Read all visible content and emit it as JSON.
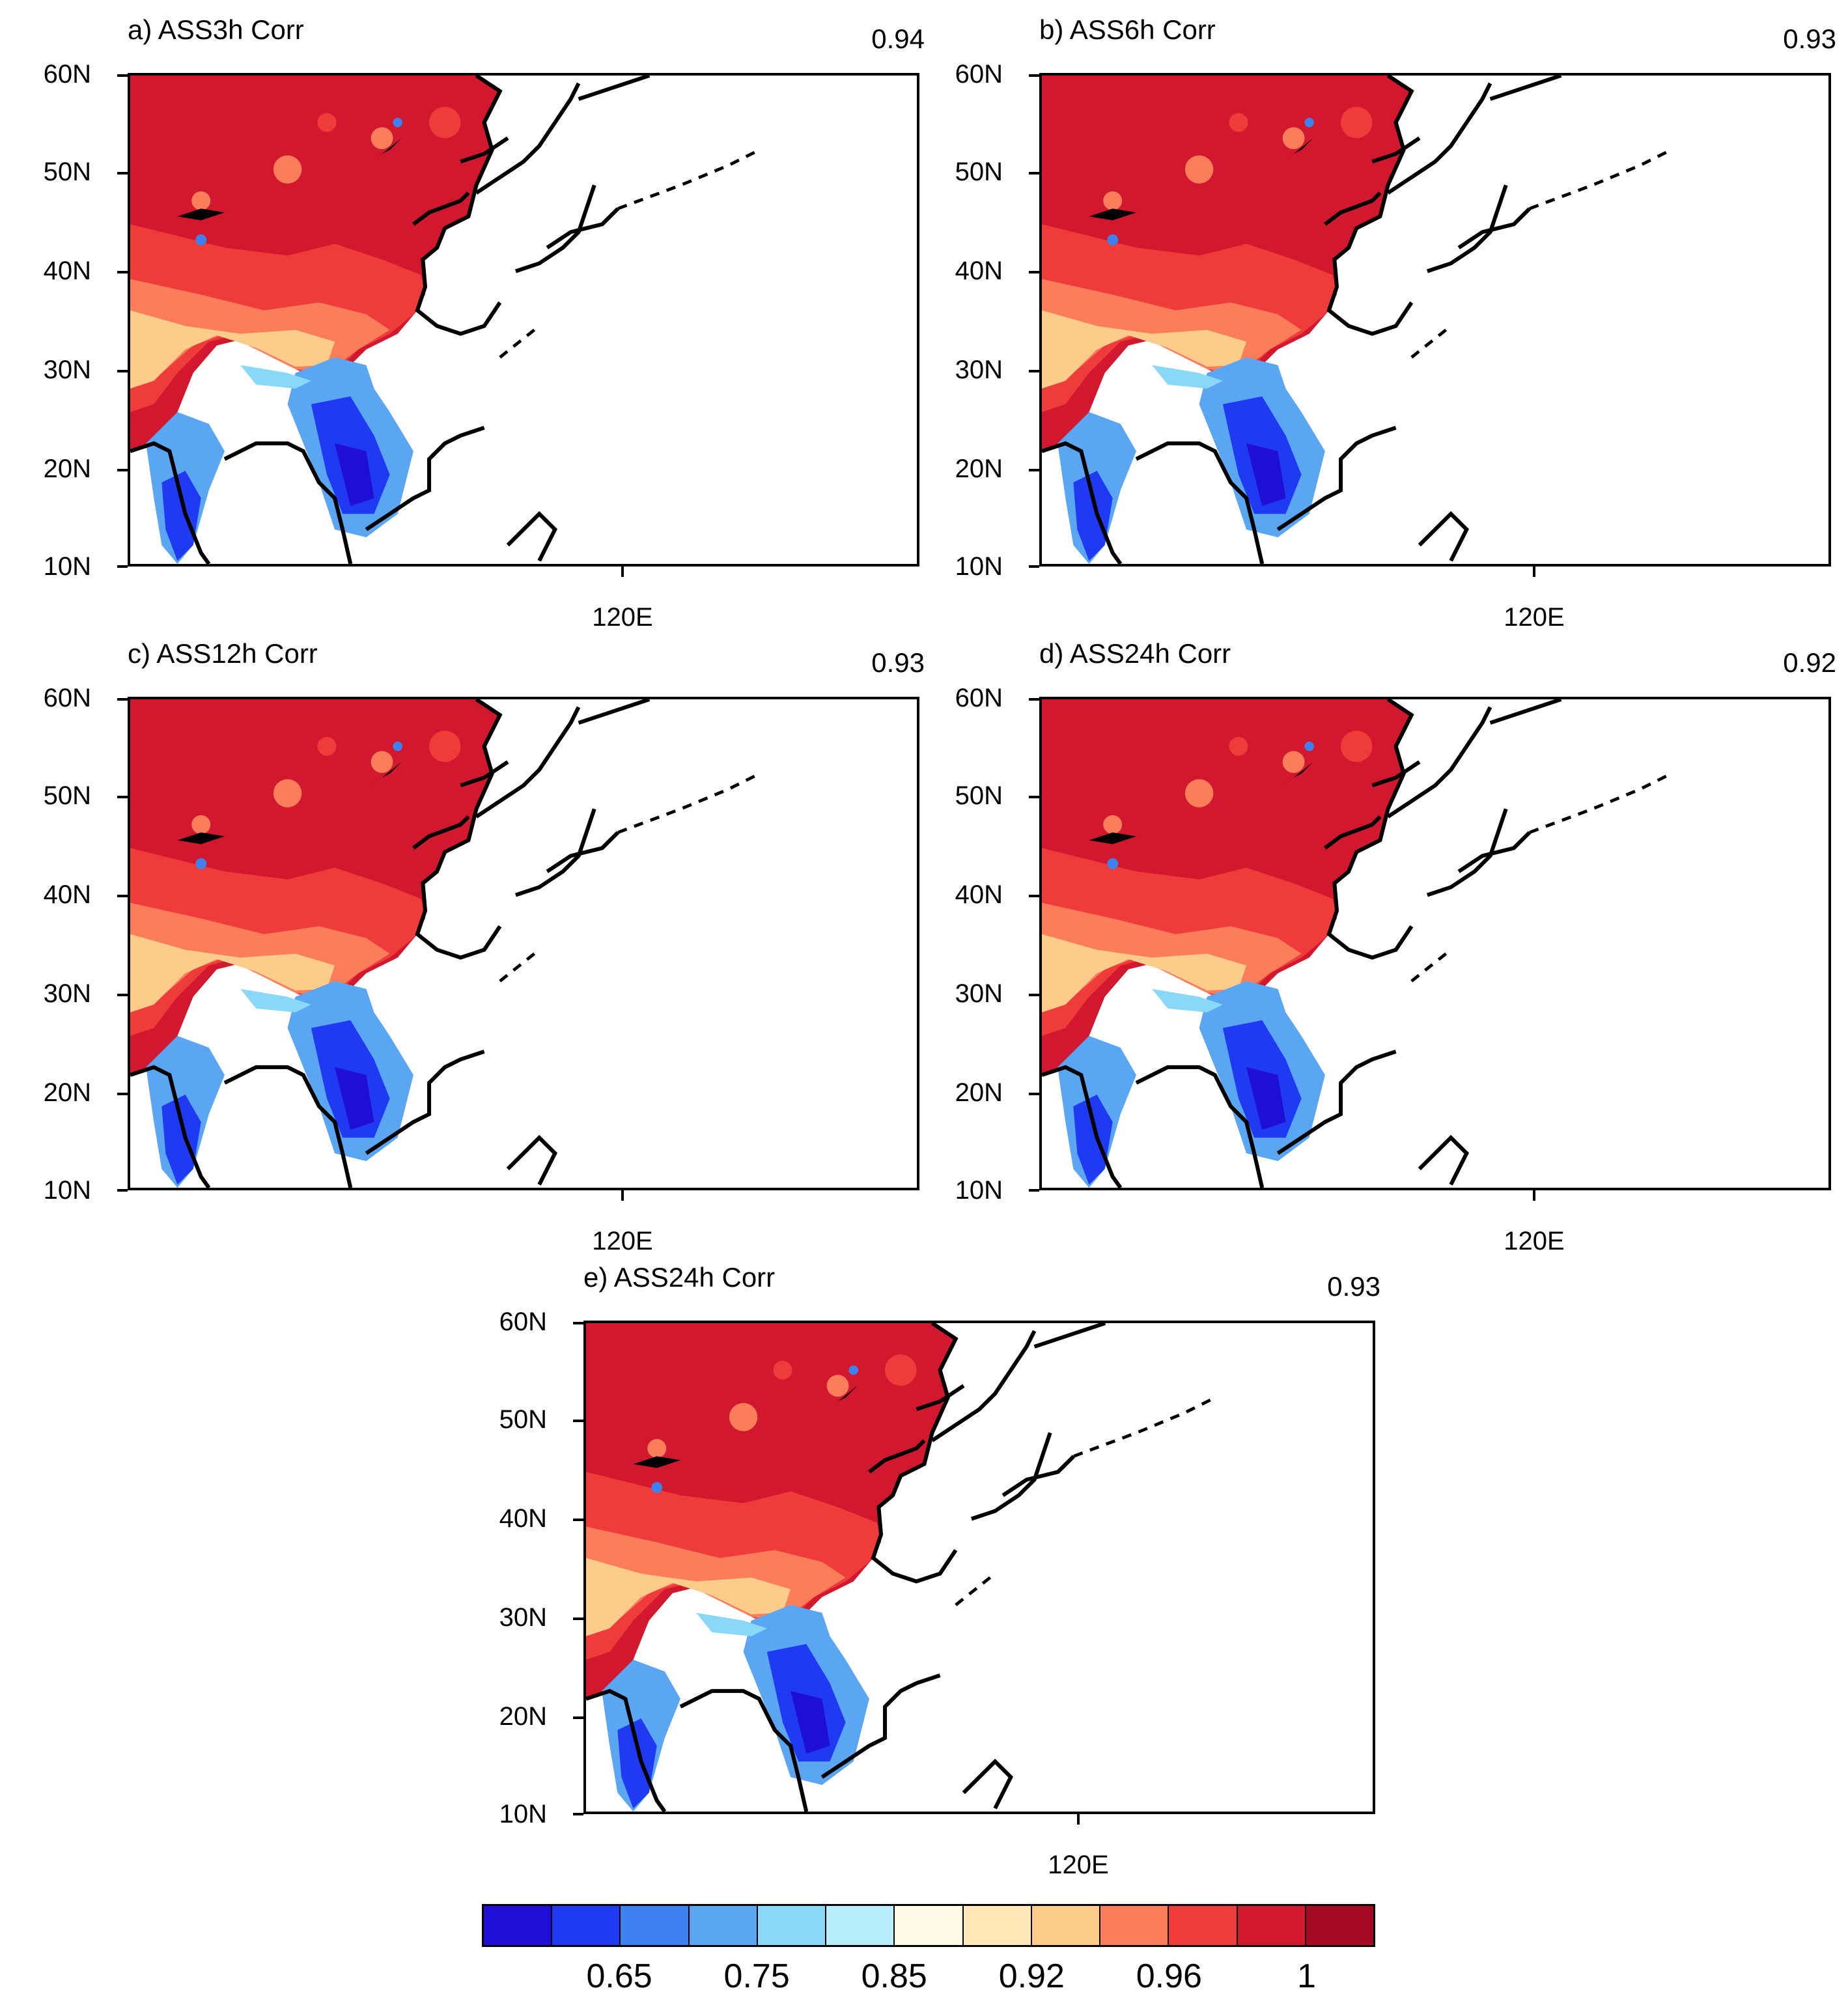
{
  "figure": {
    "y_axis_labels": [
      "60N",
      "50N",
      "40N",
      "30N",
      "20N",
      "10N"
    ],
    "x_axis_label": "120E",
    "panels": [
      {
        "id": "a",
        "title": "a) ASS3h Corr",
        "value": "0.94"
      },
      {
        "id": "b",
        "title": "b) ASS6h Corr",
        "value": "0.93"
      },
      {
        "id": "c",
        "title": "c) ASS12h Corr",
        "value": "0.93"
      },
      {
        "id": "d",
        "title": "d) ASS24h Corr",
        "value": "0.92"
      },
      {
        "id": "e",
        "title": "e) ASS24h Corr",
        "value": "0.93"
      }
    ]
  },
  "colorbar": {
    "colors": [
      "#1f0fd6",
      "#1f3af2",
      "#3e82f2",
      "#5aa6f2",
      "#8ad8f7",
      "#b8eef9",
      "#fffbe6",
      "#ffe7b8",
      "#fdcb8a",
      "#fb7d5a",
      "#f03b3b",
      "#d2182e",
      "#a50a22"
    ],
    "tick_labels": [
      "0.65",
      "0.75",
      "0.85",
      "0.92",
      "0.96",
      "1"
    ]
  },
  "chart_data": {
    "type": "heatmap",
    "description_variable": "Correlation",
    "lat_range": [
      10,
      60
    ],
    "lat_ticks": [
      10,
      20,
      30,
      40,
      50,
      60
    ],
    "lon_tick": 120,
    "panel_titles": [
      "a) ASS3h Corr",
      "b) ASS6h Corr",
      "c) ASS12h Corr",
      "d) ASS24h Corr",
      "e) ASS24h Corr"
    ],
    "panel_values": [
      0.94,
      0.93,
      0.93,
      0.92,
      0.93
    ],
    "colorbar_ticks": [
      0.65,
      0.75,
      0.85,
      0.92,
      0.96,
      1
    ]
  }
}
